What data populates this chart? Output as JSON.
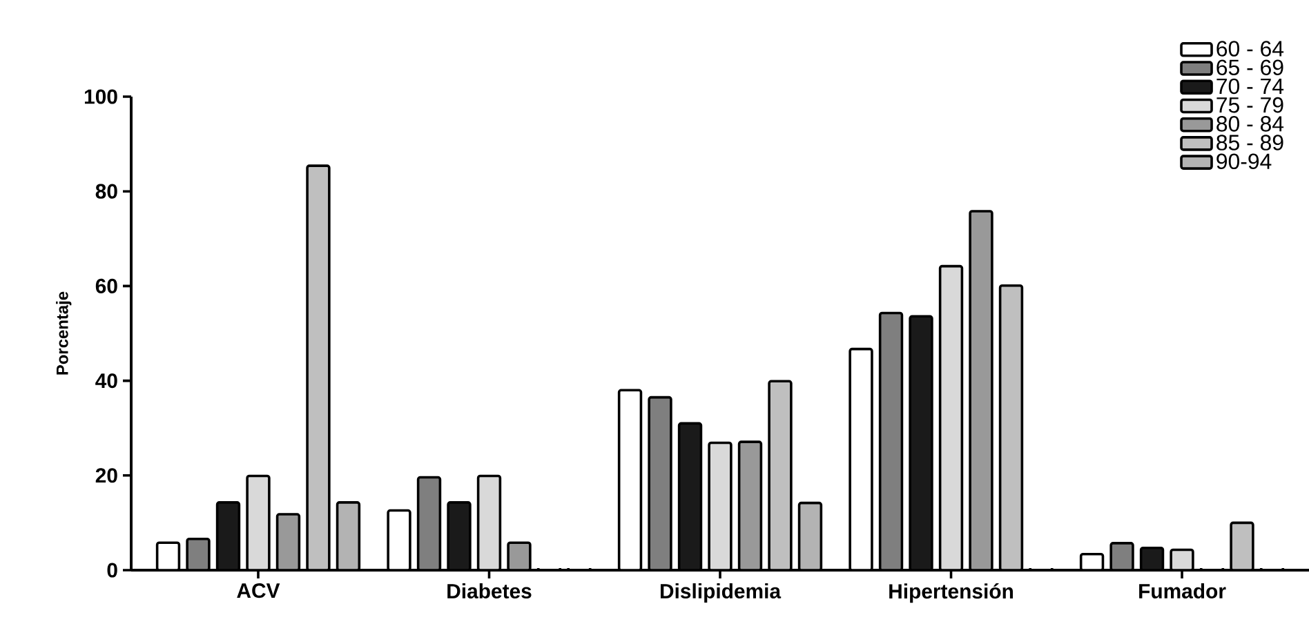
{
  "chart_data": {
    "type": "bar",
    "ylabel": "Porcentaje",
    "categories": [
      "ACV",
      "Diabetes",
      "Dislipidemia",
      "Hipertensión",
      "Fumador"
    ],
    "series": [
      {
        "name": "60 - 64",
        "color": "#ffffff",
        "values": [
          5.8,
          12.6,
          38,
          46.7,
          3.4
        ]
      },
      {
        "name": "65 - 69",
        "color": "#7f7f7f",
        "values": [
          6.6,
          19.6,
          36.5,
          54.3,
          5.7
        ]
      },
      {
        "name": "70 - 74",
        "color": "#1a1a1a",
        "values": [
          14.3,
          14.3,
          31,
          53.6,
          4.7
        ]
      },
      {
        "name": "75 - 79",
        "color": "#d9d9d9",
        "values": [
          19.9,
          19.9,
          26.9,
          64.2,
          4.3
        ]
      },
      {
        "name": "80 - 84",
        "color": "#999999",
        "values": [
          11.8,
          5.8,
          27.1,
          75.8,
          0
        ]
      },
      {
        "name": "85 - 89",
        "color": "#bfbfbf",
        "values": [
          85.4,
          0,
          39.9,
          60.1,
          10
        ]
      },
      {
        "name": "90-94",
        "color": "#b3b3b3",
        "values": [
          14.3,
          0,
          14.2,
          0,
          0
        ]
      }
    ],
    "ylim": [
      0,
      100
    ],
    "yticks": [
      0,
      20,
      40,
      60,
      80,
      100
    ],
    "grid": false,
    "legend": "top right"
  }
}
